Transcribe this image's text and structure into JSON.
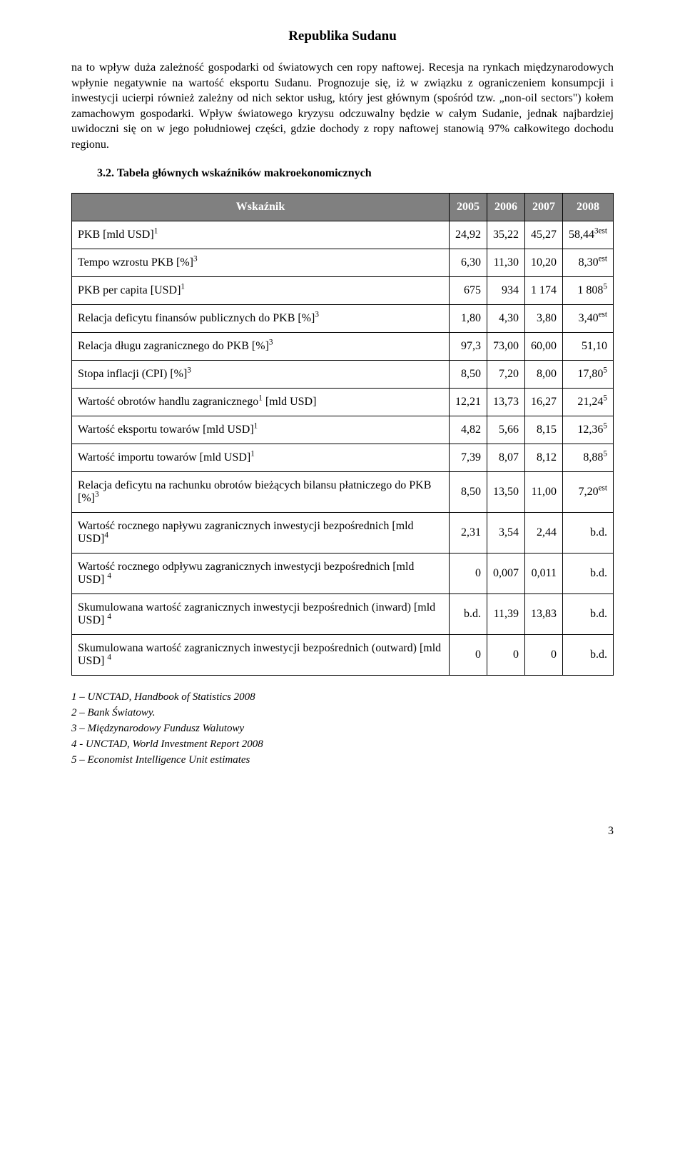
{
  "doc_title": "Republika Sudanu",
  "intro_para": "na to wpływ duża zależność gospodarki od światowych cen ropy naftowej. Recesja na rynkach międzynarodowych wpłynie negatywnie na wartość eksportu Sudanu. Prognozuje się, iż w związku z ograniczeniem konsumpcji i inwestycji ucierpi również zależny od nich sektor usług, który jest głównym (spośród tzw. „non-oil sectors\") kołem zamachowym gospodarki. Wpływ światowego kryzysu odczuwalny będzie w całym Sudanie, jednak najbardziej uwidoczni się on w jego południowej części, gdzie dochody z ropy naftowej stanowią 97% całkowitego dochodu regionu.",
  "section_heading": "3.2. Tabela głównych wskaźników makroekonomicznych",
  "table": {
    "header_label": "Wskaźnik",
    "years": [
      "2005",
      "2006",
      "2007",
      "2008"
    ],
    "rows": [
      {
        "label": "PKB [mld USD]",
        "label_sup": "1",
        "v": [
          "24,92",
          "35,22",
          "45,27",
          "58,44"
        ],
        "v_sup": [
          "",
          "",
          "",
          "3est"
        ]
      },
      {
        "label": "Tempo wzrostu PKB [%]",
        "label_sup": "3",
        "v": [
          "6,30",
          "11,30",
          "10,20",
          "8,30"
        ],
        "v_sup": [
          "",
          "",
          "",
          "est"
        ]
      },
      {
        "label": "PKB per capita [USD]",
        "label_sup": "1",
        "v": [
          "675",
          "934",
          "1 174",
          "1 808"
        ],
        "v_sup": [
          "",
          "",
          "",
          "5"
        ]
      },
      {
        "label": "Relacja deficytu finansów publicznych do PKB [%]",
        "label_sup": "3",
        "v": [
          "1,80",
          "4,30",
          "3,80",
          "3,40"
        ],
        "v_sup": [
          "",
          "",
          "",
          "est"
        ]
      },
      {
        "label": "Relacja długu zagranicznego do PKB [%]",
        "label_sup": "3",
        "v": [
          "97,3",
          "73,00",
          "60,00",
          "51,10"
        ],
        "v_sup": [
          "",
          "",
          "",
          ""
        ]
      },
      {
        "label": "Stopa inflacji (CPI)  [%]",
        "label_sup": "3",
        "v": [
          "8,50",
          "7,20",
          "8,00",
          "17,80"
        ],
        "v_sup": [
          "",
          "",
          "",
          "5"
        ]
      },
      {
        "label": "Wartość obrotów handlu zagranicznego",
        "label_sup": "1",
        "label_after": " [mld USD]",
        "v": [
          "12,21",
          "13,73",
          "16,27",
          "21,24"
        ],
        "v_sup": [
          "",
          "",
          "",
          "5"
        ]
      },
      {
        "label": "Wartość eksportu towarów [mld USD]",
        "label_sup": "1",
        "v": [
          "4,82",
          "5,66",
          "8,15",
          "12,36"
        ],
        "v_sup": [
          "",
          "",
          "",
          "5"
        ]
      },
      {
        "label": "Wartość importu towarów [mld USD]",
        "label_sup": "1",
        "v": [
          "7,39",
          "8,07",
          "8,12",
          "8,88"
        ],
        "v_sup": [
          "",
          "",
          "",
          "5"
        ]
      },
      {
        "label": "Relacja deficytu na rachunku obrotów bieżących bilansu płatniczego do PKB [%]",
        "label_sup": "3",
        "v": [
          "8,50",
          "13,50",
          "11,00",
          "7,20"
        ],
        "v_sup": [
          "",
          "",
          "",
          "est"
        ]
      },
      {
        "label": "Wartość rocznego napływu zagranicznych inwestycji bezpośrednich [mld USD]",
        "label_sup": "4",
        "v": [
          "2,31",
          "3,54",
          "2,44",
          "b.d."
        ],
        "v_sup": [
          "",
          "",
          "",
          ""
        ]
      },
      {
        "label": "Wartość rocznego odpływu zagranicznych inwestycji bezpośrednich [mld USD]",
        "label_sup": "4",
        "label_pre_sup_space": " ",
        "v": [
          "0",
          "0,007",
          "0,011",
          "b.d."
        ],
        "v_sup": [
          "",
          "",
          "",
          ""
        ]
      },
      {
        "label": "Skumulowana wartość zagranicznych inwestycji bezpośrednich (inward) [mld USD]",
        "label_sup": "4",
        "label_pre_sup_space": " ",
        "v": [
          "b.d.",
          "11,39",
          "13,83",
          "b.d."
        ],
        "v_sup": [
          "",
          "",
          "",
          ""
        ]
      },
      {
        "label": "Skumulowana wartość zagranicznych inwestycji bezpośrednich (outward) [mld USD]",
        "label_sup": "4",
        "label_pre_sup_space": " ",
        "v": [
          "0",
          "0",
          "0",
          "b.d."
        ],
        "v_sup": [
          "",
          "",
          "",
          ""
        ]
      }
    ]
  },
  "footnotes": [
    "1 – UNCTAD, Handbook of Statistics 2008",
    "2 – Bank Światowy.",
    "3 – Międzynarodowy Fundusz Walutowy",
    "4 - UNCTAD, World Investment Report 2008",
    "5 – Economist Intelligence Unit estimates"
  ],
  "page_number": "3"
}
